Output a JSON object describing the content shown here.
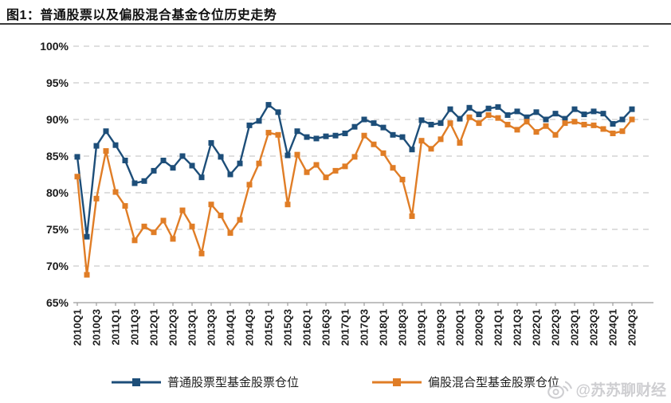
{
  "figure": {
    "title": "图1：普通股票以及偏股混合基金仓位历史走势"
  },
  "watermark": {
    "icon": "weibo-icon",
    "text": "@苏苏聊财经"
  },
  "colors": {
    "ordinary_stock_series": "#1d4e79",
    "hybrid_series": "#e07d26",
    "gridline": "#c9c9c9",
    "axis": "#9b9b9b",
    "tick_text": "#1a1a1a",
    "title_rule": "#3a3a3a",
    "watermark": "#c6c6ca"
  },
  "chart_data": {
    "type": "line",
    "title": "图1：普通股票以及偏股混合基金仓位历史走势",
    "grid": "dashed-horizontal",
    "legend_position": "bottom",
    "ylim": [
      65,
      100
    ],
    "y_tick_values": [
      100,
      95,
      90,
      85,
      80,
      75,
      70,
      65
    ],
    "y_tick_labels": [
      "100%",
      "95%",
      "90%",
      "85%",
      "80%",
      "75%",
      "70%",
      "65%"
    ],
    "x": [
      "2010Q1",
      "2010Q2",
      "2010Q3",
      "2010Q4",
      "2011Q1",
      "2011Q2",
      "2011Q3",
      "2011Q4",
      "2012Q1",
      "2012Q2",
      "2012Q3",
      "2012Q4",
      "2013Q1",
      "2013Q2",
      "2013Q3",
      "2013Q4",
      "2014Q1",
      "2014Q2",
      "2014Q3",
      "2014Q4",
      "2015Q1",
      "2015Q2",
      "2015Q3",
      "2015Q4",
      "2016Q1",
      "2016Q2",
      "2016Q3",
      "2016Q4",
      "2017Q1",
      "2017Q2",
      "2017Q3",
      "2017Q4",
      "2018Q1",
      "2018Q2",
      "2018Q3",
      "2018Q4",
      "2019Q1",
      "2019Q2",
      "2019Q3",
      "2019Q4",
      "2020Q1",
      "2020Q2",
      "2020Q3",
      "2020Q4",
      "2021Q1",
      "2021Q2",
      "2021Q3",
      "2021Q4",
      "2022Q1",
      "2022Q2",
      "2022Q3",
      "2022Q4",
      "2023Q1",
      "2023Q2",
      "2023Q3",
      "2023Q4",
      "2024Q1",
      "2024Q2",
      "2024Q3"
    ],
    "x_tick_labels": [
      "2010Q1",
      "2010Q3",
      "2011Q1",
      "2011Q3",
      "2012Q1",
      "2012Q3",
      "2013Q1",
      "2013Q3",
      "2014Q1",
      "2014Q3",
      "2015Q1",
      "2015Q3",
      "2016Q1",
      "2016Q3",
      "2017Q1",
      "2017Q3",
      "2018Q1",
      "2018Q3",
      "2019Q1",
      "2019Q3",
      "2020Q1",
      "2020Q3",
      "2021Q1",
      "2021Q3",
      "2022Q1",
      "2022Q3",
      "2023Q1",
      "2023Q3",
      "2024Q1",
      "2024Q3"
    ],
    "x_tick_every": 2,
    "series": [
      {
        "name": "普通股票型基金股票仓位",
        "color": "#1d4e79",
        "marker": "square",
        "values": [
          84.9,
          74.0,
          86.4,
          88.4,
          86.5,
          84.4,
          81.3,
          81.6,
          83.0,
          84.4,
          83.4,
          85.0,
          83.7,
          82.1,
          86.8,
          84.9,
          82.5,
          84.0,
          89.2,
          89.8,
          92.0,
          91.0,
          85.1,
          88.4,
          87.6,
          87.4,
          87.7,
          87.8,
          88.1,
          89.0,
          90.0,
          89.5,
          88.9,
          87.9,
          87.6,
          85.9,
          89.9,
          89.3,
          89.5,
          91.4,
          90.1,
          91.6,
          90.7,
          91.5,
          91.7,
          90.6,
          91.1,
          90.3,
          91.0,
          90.0,
          90.8,
          90.1,
          91.4,
          90.7,
          91.1,
          90.8,
          89.4,
          90.0,
          91.4
        ]
      },
      {
        "name": "偏股混合型基金股票仓位",
        "color": "#e07d26",
        "marker": "square",
        "values": [
          82.2,
          68.8,
          79.2,
          85.7,
          80.1,
          78.2,
          73.5,
          75.4,
          74.6,
          76.2,
          73.7,
          77.6,
          75.4,
          71.7,
          78.4,
          76.9,
          74.5,
          76.3,
          81.1,
          84.0,
          88.2,
          87.9,
          78.4,
          85.2,
          82.8,
          83.8,
          82.1,
          83.0,
          83.6,
          84.9,
          87.8,
          86.6,
          85.4,
          83.4,
          81.8,
          76.8,
          87.1,
          86.0,
          87.3,
          89.5,
          86.8,
          90.3,
          89.5,
          90.6,
          90.2,
          89.3,
          88.6,
          89.7,
          88.3,
          89.1,
          87.9,
          89.5,
          89.7,
          89.3,
          89.2,
          88.7,
          88.1,
          88.4,
          90.0
        ]
      }
    ]
  }
}
